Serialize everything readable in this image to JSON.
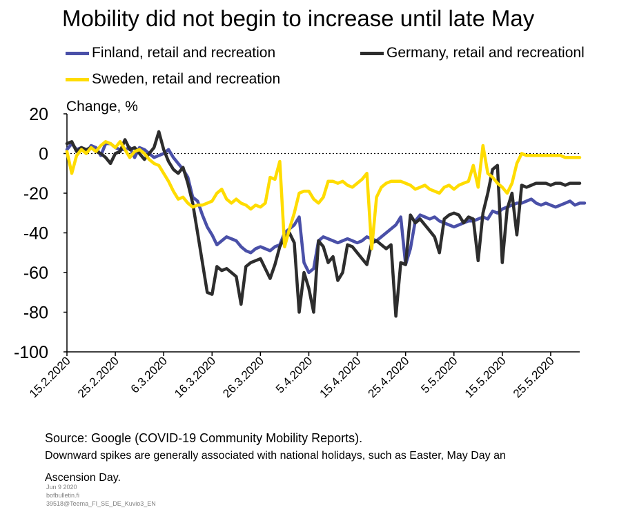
{
  "title": "Mobility did not begin to increase until late May",
  "unit_label": "Change, %",
  "notes": {
    "source": "Source: Google (COVID-19 Community Mobility Reports).",
    "line2": "Downward spikes are generally associated with national holidays, such as Easter, May Day an",
    "line3": "Ascension Day."
  },
  "footer": [
    "Jun 9 2020",
    "bofbulletin.fi",
    "39518@Teema_FI_SE_DE_Kuvio3_EN"
  ],
  "chart_data": {
    "type": "line",
    "title": "Mobility did not begin to increase until late May",
    "ylabel": "Change, %",
    "xlabel": "",
    "ylim": [
      -100,
      20
    ],
    "yticks": [
      20,
      0,
      -20,
      -40,
      -60,
      -80,
      -100
    ],
    "x_start": "2020-02-15",
    "x_end": "2020-05-31",
    "xticks": [
      "15.2.2020",
      "25.2.2020",
      "6.3.2020",
      "16.3.2020",
      "26.3.2020",
      "5.4.2020",
      "15.4.2020",
      "25.4.2020",
      "5.5.2020",
      "15.5.2020",
      "25.5.2020"
    ],
    "reference_line": 0,
    "legend_position": "top",
    "series": [
      {
        "name": "Finland, retail and recreation",
        "color": "#4a50a8",
        "values": [
          2,
          5,
          2,
          3,
          0,
          4,
          3,
          -1,
          5,
          5,
          3,
          2,
          2,
          3,
          -2,
          3,
          2,
          0,
          -2,
          -1,
          0,
          2,
          -2,
          -5,
          -8,
          -12,
          -22,
          -24,
          -31,
          -37,
          -41,
          -46,
          -44,
          -42,
          -43,
          -44,
          -47,
          -49,
          -50,
          -48,
          -47,
          -48,
          -49,
          -47,
          -46,
          -40,
          -38,
          -36,
          -32,
          -55,
          -60,
          -58,
          -44,
          -42,
          -43,
          -44,
          -45,
          -44,
          -43,
          -44,
          -45,
          -44,
          -42,
          -43,
          -44,
          -42,
          -40,
          -38,
          -36,
          -32,
          -56,
          -48,
          -34,
          -31,
          -32,
          -33,
          -32,
          -34,
          -35,
          -36,
          -37,
          -36,
          -35,
          -34,
          -34,
          -33,
          -32,
          -33,
          -29,
          -30,
          -28,
          -27,
          -26,
          -25,
          -25,
          -24,
          -23,
          -25,
          -26,
          -25,
          -26,
          -27,
          -26,
          -25,
          -24,
          -26,
          -25,
          -25
        ]
      },
      {
        "name": "Germany, retail and recreationl",
        "color": "#2d2d2d",
        "values": [
          5,
          6,
          1,
          3,
          2,
          3,
          1,
          0,
          -2,
          -5,
          0,
          1,
          7,
          2,
          3,
          0,
          -3,
          0,
          3,
          11,
          2,
          -4,
          -8,
          -10,
          -7,
          -15,
          -25,
          -40,
          -55,
          -70,
          -71,
          -57,
          -59,
          -58,
          -60,
          -62,
          -76,
          -57,
          -55,
          -54,
          -53,
          -58,
          -63,
          -56,
          -47,
          -42,
          -40,
          -45,
          -80,
          -60,
          -68,
          -80,
          -44,
          -47,
          -55,
          -52,
          -64,
          -60,
          -46,
          -47,
          -50,
          -53,
          -56,
          -45,
          -44,
          -46,
          -48,
          -46,
          -82,
          -55,
          -56,
          -31,
          -35,
          -33,
          -36,
          -39,
          -42,
          -50,
          -33,
          -31,
          -30,
          -31,
          -35,
          -32,
          -33,
          -54,
          -30,
          -20,
          -8,
          -6,
          -55,
          -28,
          -20,
          -41,
          -16,
          -17,
          -16,
          -15,
          -15,
          -15,
          -16,
          -15,
          -15,
          -16,
          -15,
          -15,
          -15
        ]
      },
      {
        "name": "Sweden, retail and recreation",
        "color": "#ffdc00",
        "values": [
          1,
          -10,
          -1,
          2,
          0,
          3,
          1,
          4,
          6,
          5,
          3,
          6,
          2,
          -2,
          1,
          2,
          0,
          -3,
          -5,
          -6,
          -10,
          -14,
          -19,
          -23,
          -22,
          -25,
          -27,
          -26,
          -26,
          -25,
          -24,
          -20,
          -18,
          -23,
          -25,
          -23,
          -25,
          -26,
          -28,
          -26,
          -27,
          -25,
          -12,
          -13,
          -4,
          -47,
          -38,
          -30,
          -20,
          -19,
          -19,
          -23,
          -25,
          -22,
          -14,
          -14,
          -15,
          -14,
          -16,
          -17,
          -15,
          -13,
          -10,
          -48,
          -22,
          -17,
          -15,
          -14,
          -14,
          -14,
          -15,
          -16,
          -18,
          -17,
          -16,
          -18,
          -19,
          -20,
          -17,
          -16,
          -18,
          -16,
          -15,
          -14,
          -6,
          -17,
          4,
          -10,
          -12,
          -15,
          -17,
          -20,
          -15,
          -5,
          0,
          -1,
          -1,
          -1,
          -1,
          -1,
          -1,
          -1,
          -1,
          -2,
          -2,
          -2,
          -2
        ]
      }
    ]
  }
}
